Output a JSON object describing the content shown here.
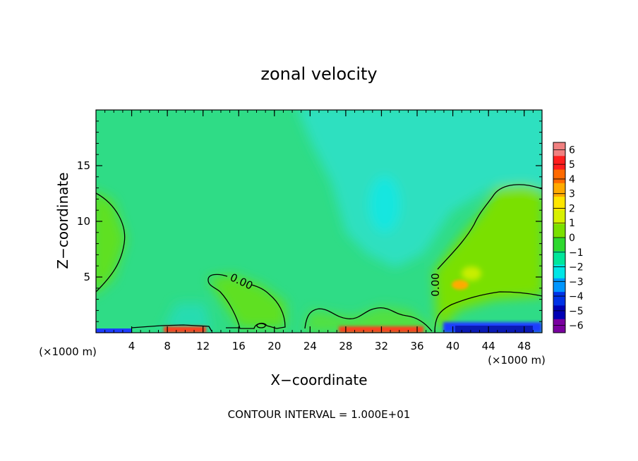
{
  "chart_data": {
    "type": "heatmap",
    "title": "zonal velocity",
    "xlabel": "X−coordinate",
    "ylabel": "Z−coordinate",
    "x_unit_left": "(×1000 m)",
    "x_unit_right": "(×1000 m)",
    "footer": "CONTOUR INTERVAL = 1.000E+01",
    "xlim": [
      0,
      50
    ],
    "ylim": [
      0,
      20
    ],
    "x_ticks": [
      4,
      8,
      12,
      16,
      20,
      24,
      28,
      32,
      36,
      40,
      44,
      48
    ],
    "y_ticks": [
      5,
      10,
      15
    ],
    "contour_label_1": "0.00",
    "contour_label_2": "0.00",
    "colorbar": {
      "ticks": [
        "6",
        "5",
        "4",
        "3",
        "2",
        "1",
        "0",
        "−1",
        "−2",
        "−3",
        "−4",
        "−5",
        "−6"
      ],
      "colors": [
        "#f08080",
        "#ff1e1e",
        "#ff6a00",
        "#ffaa00",
        "#ffe600",
        "#d8f000",
        "#7ae000",
        "#2ed82e",
        "#00e69a",
        "#00e6e6",
        "#0096ff",
        "#0032e6",
        "#0000b4",
        "#7a00a0"
      ]
    },
    "fields": {
      "background": "#2fdc86",
      "upper_cyan": "#2ee0c0",
      "right_green": "#7ae000",
      "left_green": "#5ee020",
      "ground_band": "#1e3cff",
      "hot_streak": "#ff3c1e"
    }
  }
}
